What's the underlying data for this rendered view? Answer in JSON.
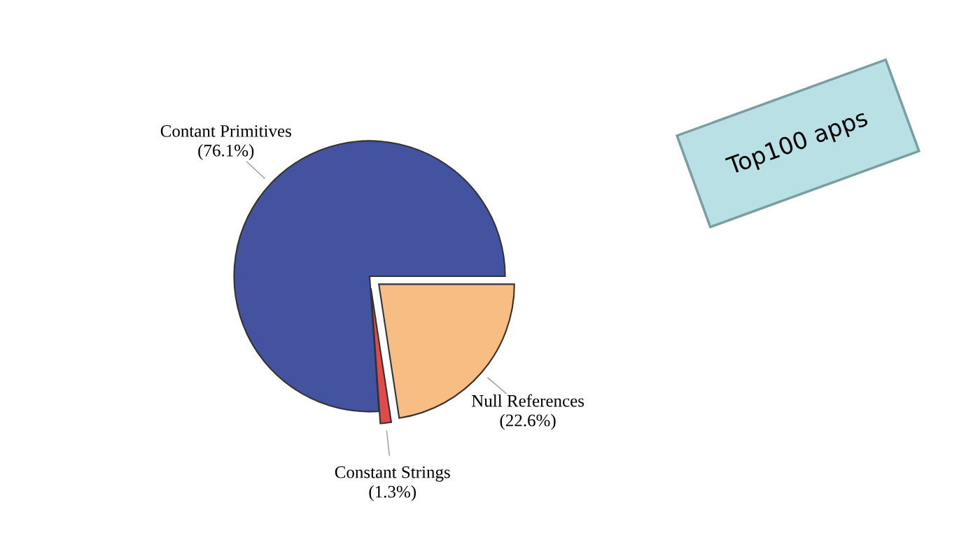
{
  "chart_data": {
    "type": "pie",
    "categories": [
      "Contant Primitives",
      "Constant Strings",
      "Null References"
    ],
    "values": [
      76.1,
      1.3,
      22.6
    ],
    "value_labels": [
      "(76.1%)",
      "(1.3%)",
      "(22.6%)"
    ],
    "colors": [
      "#4453a0",
      "#e04a4a",
      "#f8bd82"
    ],
    "annotations": [
      "Top100 apps"
    ]
  }
}
